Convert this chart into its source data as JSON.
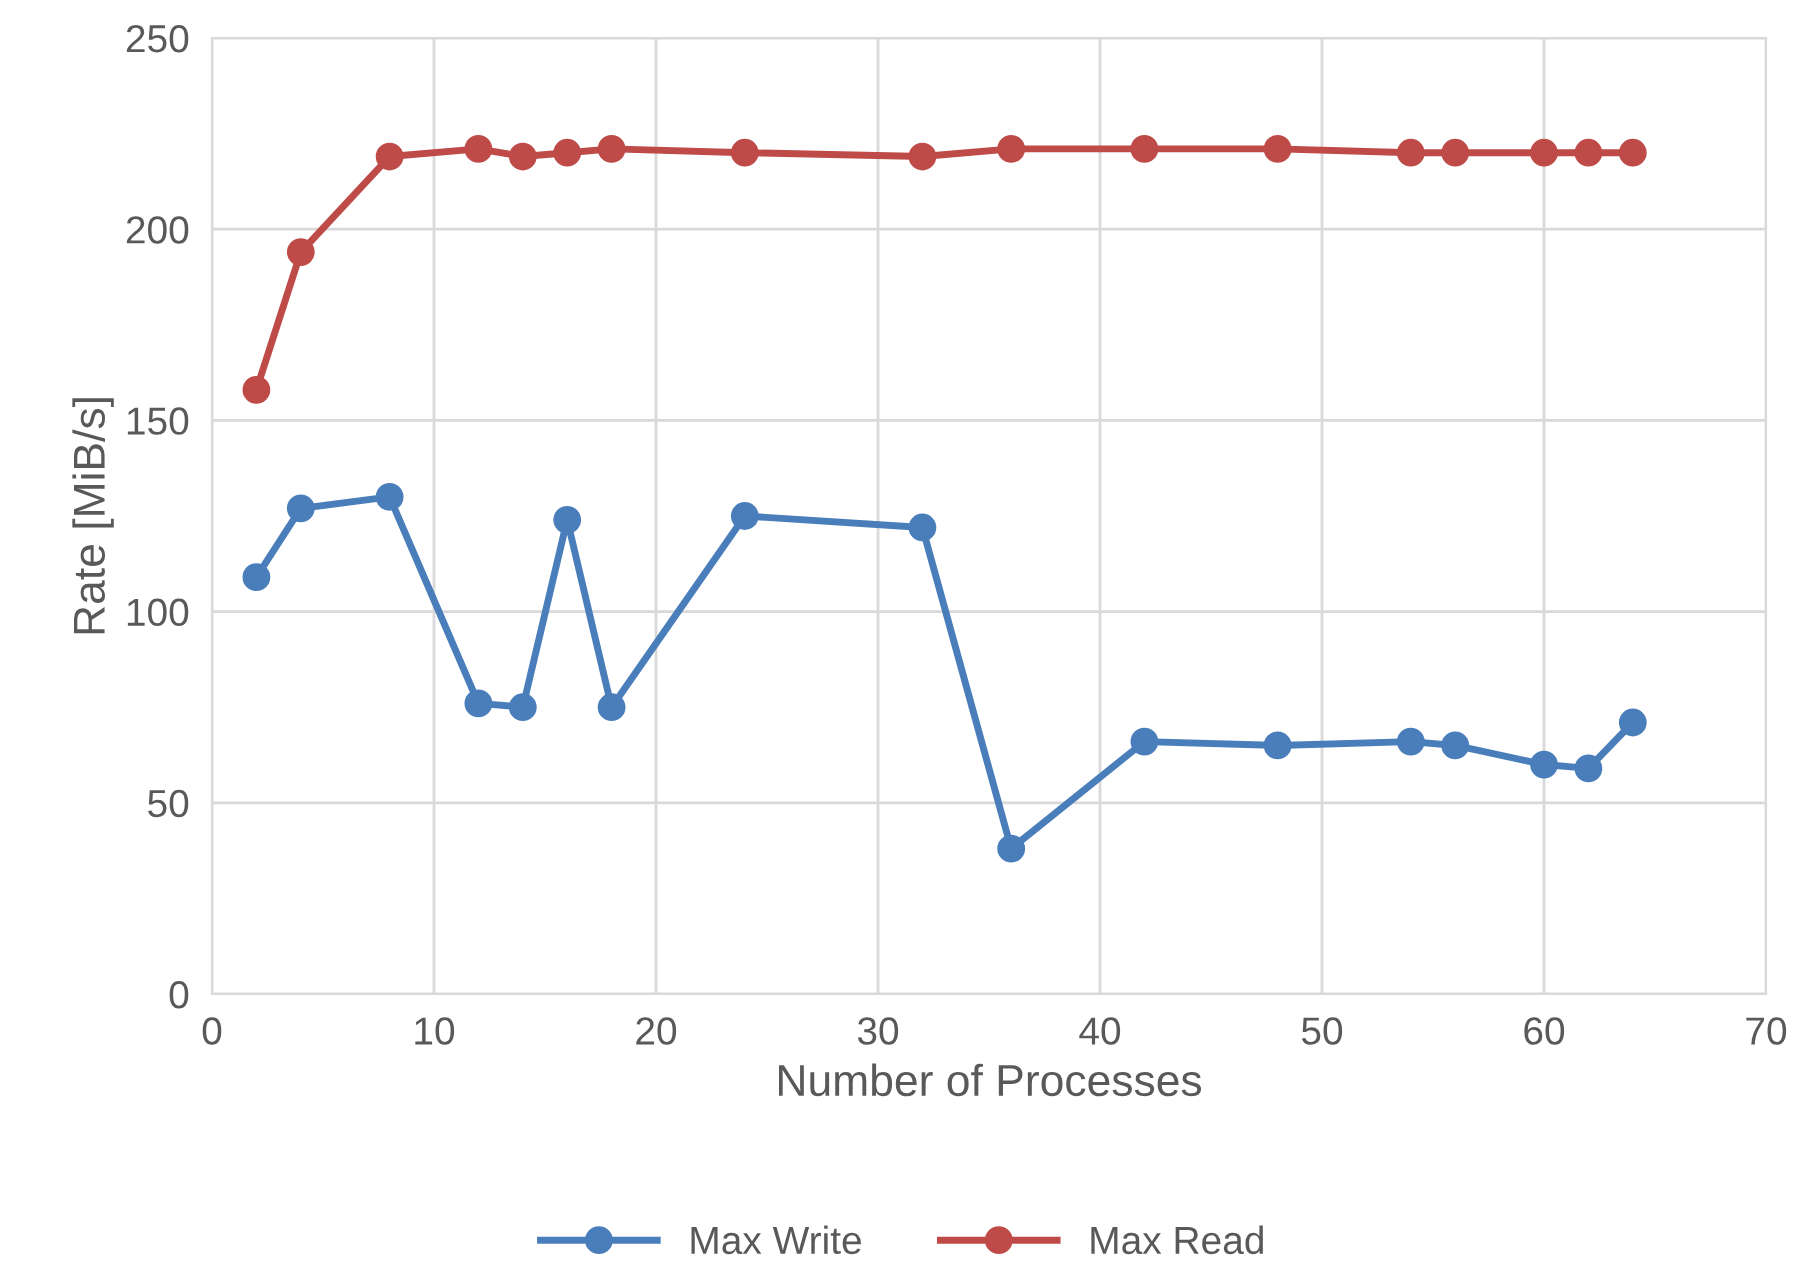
{
  "chart_data": {
    "type": "line",
    "xlabel": "Number of Processes",
    "ylabel": "Rate [MiB/s]",
    "x": [
      2,
      4,
      8,
      12,
      14,
      16,
      18,
      24,
      32,
      36,
      42,
      48,
      54,
      56,
      60,
      62,
      64
    ],
    "series": [
      {
        "name": "Max Write",
        "color": "#4a7ebb",
        "values": [
          109,
          127,
          130,
          76,
          75,
          124,
          75,
          125,
          122,
          38,
          66,
          65,
          66,
          65,
          60,
          59,
          71
        ]
      },
      {
        "name": "Max Read",
        "color": "#be4b48",
        "values": [
          158,
          194,
          219,
          221,
          219,
          220,
          221,
          220,
          219,
          221,
          221,
          221,
          220,
          220,
          220,
          220,
          220
        ]
      }
    ],
    "xlim": [
      0,
      70
    ],
    "xticks": [
      0,
      10,
      20,
      30,
      40,
      50,
      60,
      70
    ],
    "ylim": [
      0,
      250
    ],
    "yticks": [
      0,
      50,
      100,
      150,
      200,
      250
    ],
    "grid": true,
    "legend": "bottom",
    "marker": "circle",
    "line_style": "solid"
  }
}
